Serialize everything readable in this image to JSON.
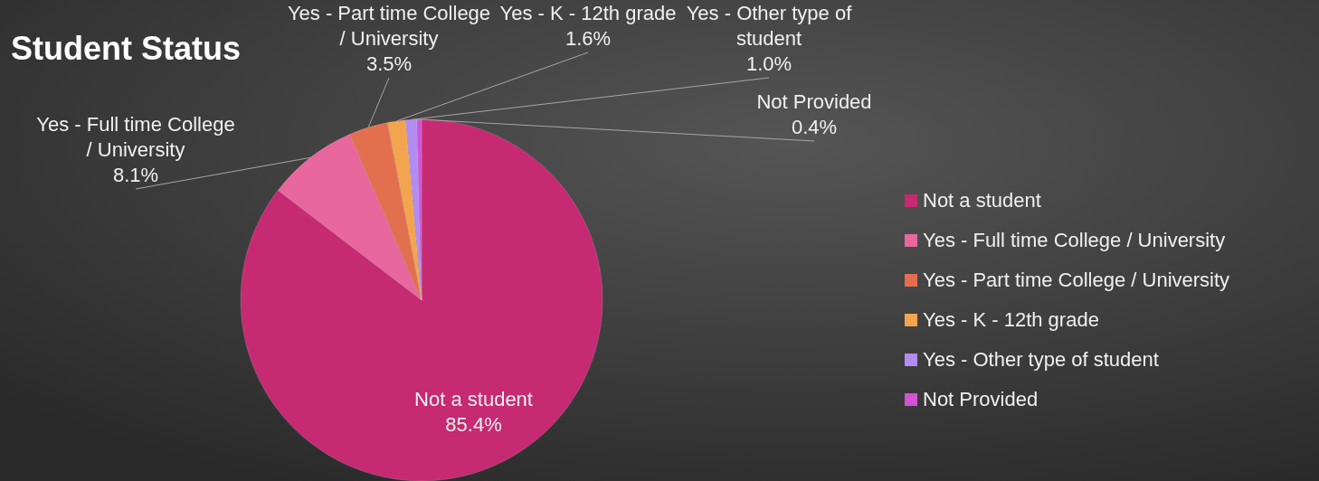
{
  "chart_data": {
    "type": "pie",
    "title": "Student Status",
    "categories": [
      "Not a student",
      "Yes - Full time College / University",
      "Yes - Part time College / University",
      "Yes - K - 12th grade",
      "Yes - Other type of student",
      "Not Provided"
    ],
    "values": [
      85.4,
      8.1,
      3.5,
      1.6,
      1.0,
      0.4
    ],
    "value_labels": [
      "85.4%",
      "8.1%",
      "3.5%",
      "1.6%",
      "1.0%",
      "0.4%"
    ],
    "colors": [
      "#c62a72",
      "#e8679c",
      "#e2704e",
      "#f2a54e",
      "#b28cf2",
      "#d452d4"
    ],
    "legend": "right"
  }
}
